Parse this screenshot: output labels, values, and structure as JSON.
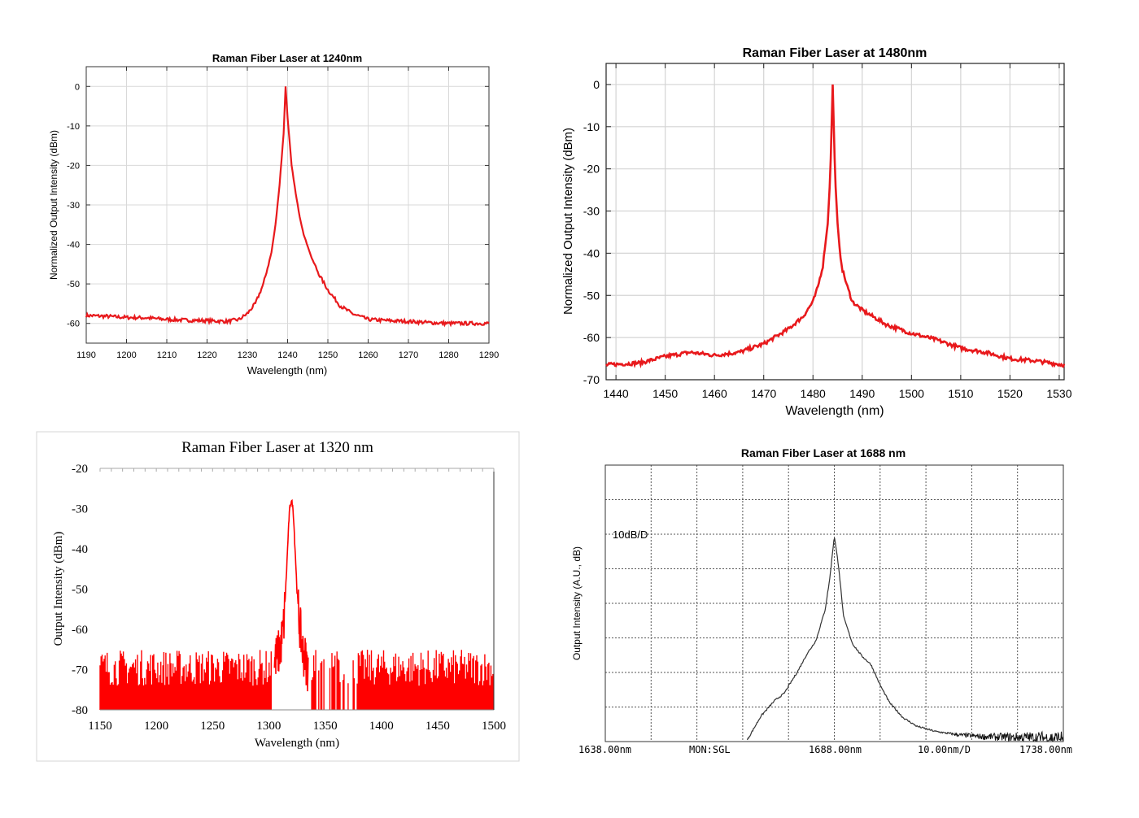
{
  "chart_data": [
    {
      "type": "line",
      "title": "Raman Fiber Laser at 1240nm",
      "xlabel": "Wavelength (nm)",
      "ylabel": "Normalized Output Intensity (dBm)",
      "xlim": [
        1190,
        1290
      ],
      "ylim": [
        -65,
        5
      ],
      "xticks": [
        1190,
        1200,
        1210,
        1220,
        1230,
        1240,
        1250,
        1260,
        1270,
        1280,
        1290
      ],
      "yticks": [
        0,
        -10,
        -20,
        -30,
        -40,
        -50,
        -60
      ],
      "grid": true,
      "line_color": "#e8191c",
      "series": [
        {
          "name": "spectrum",
          "x": [
            1190,
            1195,
            1200,
            1205,
            1210,
            1215,
            1220,
            1225,
            1228,
            1230,
            1232,
            1234,
            1236,
            1237,
            1238,
            1239,
            1239.5,
            1240,
            1241,
            1242,
            1243,
            1244,
            1246,
            1248,
            1250,
            1253,
            1256,
            1260,
            1265,
            1270,
            1275,
            1280,
            1285,
            1290
          ],
          "y": [
            -58,
            -58.2,
            -58.5,
            -58.6,
            -59,
            -59.2,
            -59.3,
            -59.5,
            -59,
            -57.5,
            -55,
            -50,
            -42,
            -35,
            -25,
            -12,
            0,
            -8,
            -20,
            -27,
            -33,
            -37.5,
            -43.5,
            -48,
            -51.5,
            -55.5,
            -57.5,
            -59,
            -59.3,
            -59.5,
            -59.8,
            -60,
            -60,
            -60
          ]
        }
      ]
    },
    {
      "type": "line",
      "title": "Raman Fiber Laser at 1480nm",
      "xlabel": "Wavelength (nm)",
      "ylabel": "Normalized Output Intensity (dBm)",
      "xlim": [
        1438,
        1531
      ],
      "ylim": [
        -70,
        5
      ],
      "xticks": [
        1440,
        1450,
        1460,
        1470,
        1480,
        1490,
        1500,
        1510,
        1520,
        1530
      ],
      "yticks": [
        0,
        -10,
        -20,
        -30,
        -40,
        -50,
        -60,
        -70
      ],
      "grid": true,
      "line_color": "#e8191c",
      "series": [
        {
          "name": "spectrum",
          "x": [
            1438,
            1445,
            1450,
            1455,
            1460,
            1465,
            1470,
            1475,
            1478,
            1480,
            1481,
            1482,
            1483,
            1483.5,
            1484,
            1484.5,
            1485,
            1485.5,
            1486,
            1487,
            1488,
            1490,
            1495,
            1500,
            1505,
            1510,
            1515,
            1520,
            1525,
            1531
          ],
          "y": [
            -66.5,
            -66,
            -64.5,
            -63.5,
            -64.2,
            -63.5,
            -61.5,
            -58,
            -55,
            -51.5,
            -48,
            -43,
            -33,
            -22,
            0,
            -22,
            -33,
            -40,
            -44,
            -48,
            -51.5,
            -53.5,
            -57,
            -59,
            -60.5,
            -62.5,
            -63.5,
            -65,
            -65.5,
            -66.5
          ]
        }
      ]
    },
    {
      "type": "line",
      "title": "Raman Fiber Laser at 1320 nm",
      "xlabel": "Wavelength (nm)",
      "ylabel": "Output Intensity (dBm)",
      "xlim": [
        1150,
        1500
      ],
      "ylim": [
        -80,
        -20
      ],
      "xticks": [
        1150,
        1200,
        1250,
        1300,
        1350,
        1400,
        1450,
        1500
      ],
      "yticks": [
        -20,
        -30,
        -40,
        -50,
        -60,
        -70,
        -80
      ],
      "grid": false,
      "line_color": "#ff0000",
      "noise_floor_range": [
        -80,
        -66
      ],
      "series": [
        {
          "name": "peak",
          "x": [
            1305,
            1310,
            1313,
            1315,
            1317,
            1318,
            1319,
            1320,
            1321,
            1322,
            1323,
            1325,
            1327,
            1330,
            1335
          ],
          "y": [
            -68,
            -65,
            -60,
            -50,
            -38,
            -32,
            -29,
            -28,
            -29,
            -32,
            -38,
            -50,
            -58,
            -65,
            -70
          ]
        }
      ]
    },
    {
      "type": "line",
      "title": "Raman Fiber Laser at 1688 nm",
      "ylabel": "Output Intensity (A.U., dB)",
      "xlim": [
        1638,
        1738
      ],
      "scale_label": "10dB/D",
      "grid": true,
      "line_color": "#333333",
      "axis_readouts": {
        "start": "1638.00nm",
        "mode": "MON:SGL",
        "center": "1688.00nm",
        "span": "10.00nm/D",
        "stop": "1738.00nm"
      },
      "series": [
        {
          "name": "spectrum",
          "x": [
            1669,
            1672,
            1675,
            1677,
            1680,
            1682,
            1684,
            1686,
            1687,
            1688,
            1689,
            1690,
            1692,
            1694,
            1696,
            1698,
            1700,
            1703,
            1706,
            1710,
            1715,
            1720,
            1725,
            1730,
            1738
          ],
          "y": [
            -60,
            -53,
            -48.5,
            -46.5,
            -40,
            -35,
            -31,
            -22,
            -13,
            -0.5,
            -10,
            -24,
            -32,
            -35.5,
            -38,
            -44,
            -49,
            -53.5,
            -56,
            -57.5,
            -58.5,
            -59,
            -59.2,
            -59.3,
            -59.5
          ]
        }
      ]
    }
  ]
}
